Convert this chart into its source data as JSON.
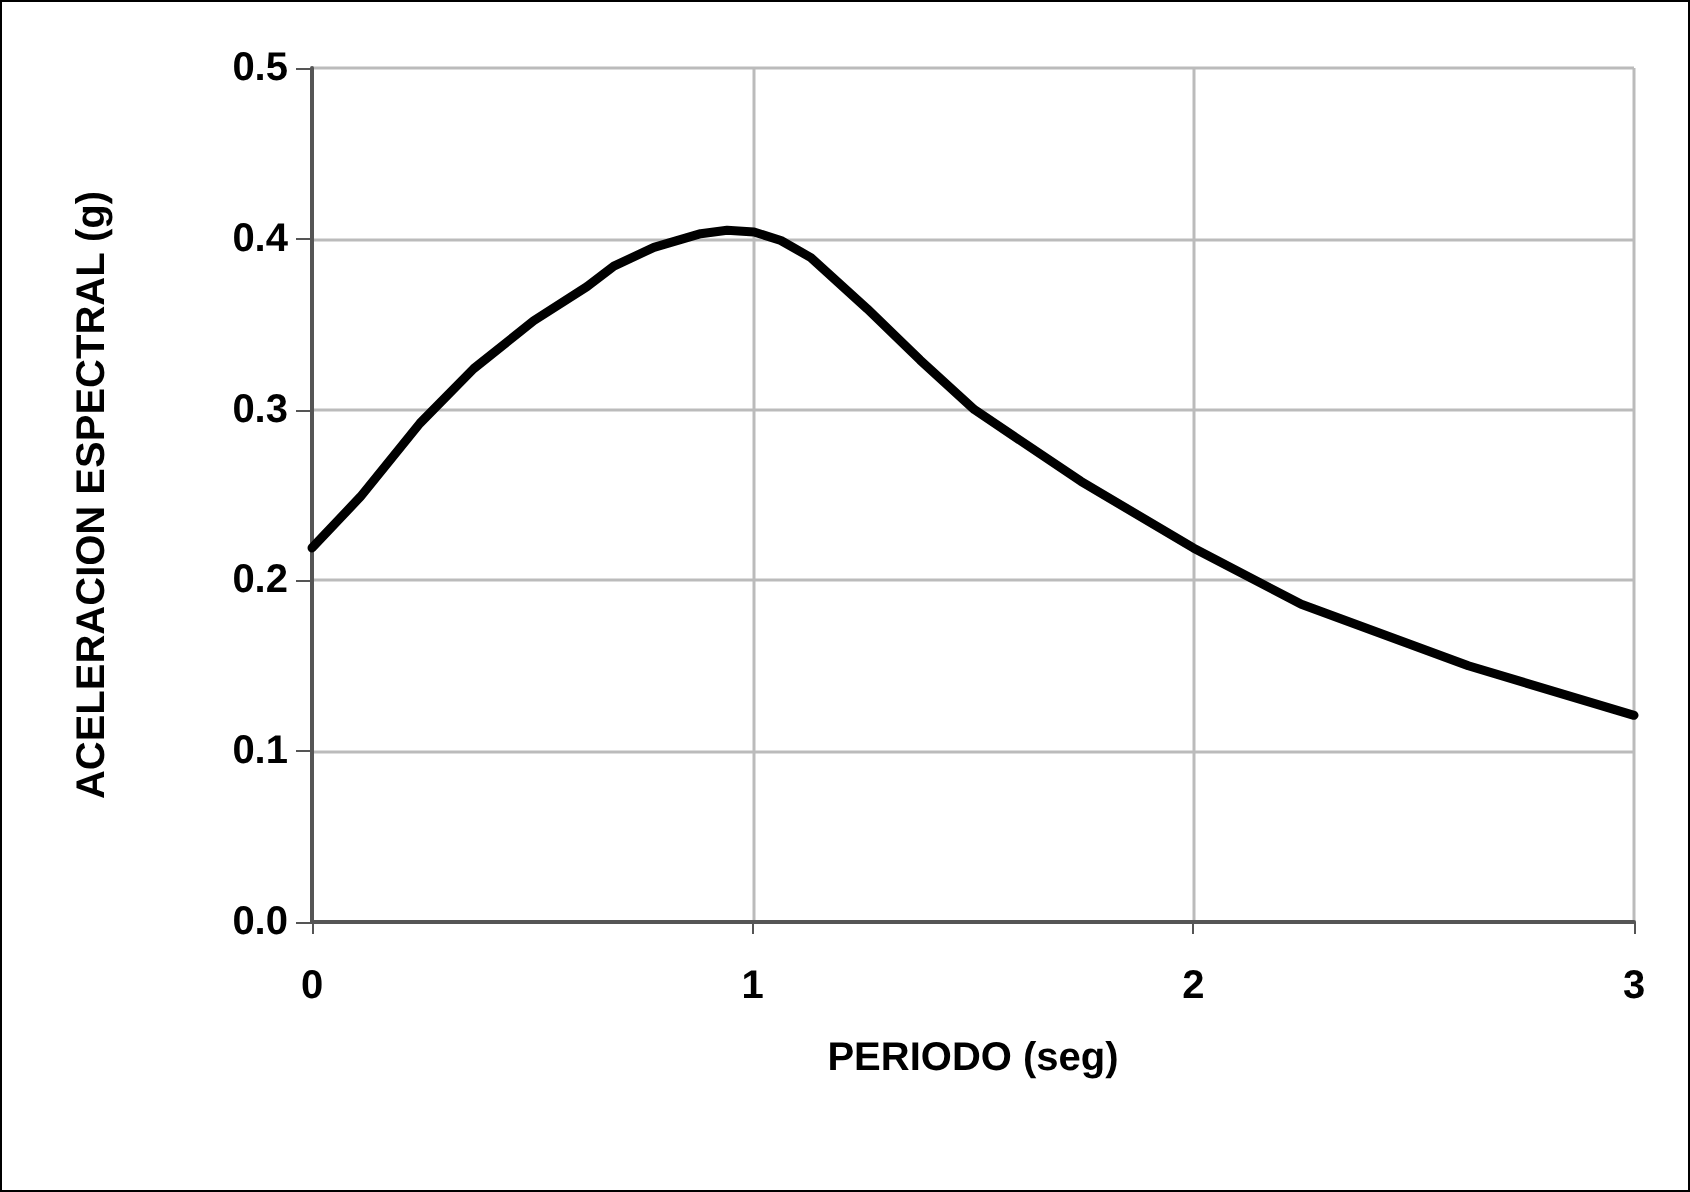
{
  "chart_data": {
    "type": "line",
    "xlabel": "PERIODO (seg)",
    "ylabel": "ACELERACION ESPECTRAL (g)",
    "x": [
      0,
      0.11,
      0.245,
      0.367,
      0.503,
      0.624,
      0.685,
      0.776,
      0.882,
      0.942,
      1.003,
      1.064,
      1.132,
      1.26,
      1.38,
      1.503,
      1.745,
      2.0,
      2.245,
      2.624,
      3.0
    ],
    "series": [
      {
        "color": "#000000",
        "values": [
          0.219,
          0.249,
          0.292,
          0.324,
          0.352,
          0.372,
          0.384,
          0.395,
          0.403,
          0.405,
          0.404,
          0.399,
          0.389,
          0.359,
          0.329,
          0.3,
          0.258,
          0.219,
          0.186,
          0.15,
          0.121
        ]
      }
    ],
    "xlim": [
      0,
      3
    ],
    "xticks": [
      0,
      1,
      2,
      3
    ],
    "ylim": [
      0,
      0.5
    ],
    "yticks": [
      {
        "value": 0,
        "label": "0.0"
      },
      0.1,
      0.2,
      0.3,
      0.4,
      0.5
    ],
    "grid": true,
    "marker": "none",
    "line_style": "solid"
  }
}
